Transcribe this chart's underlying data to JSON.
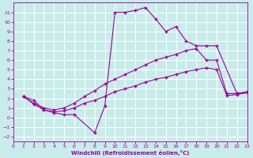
{
  "xlabel": "Windchill (Refroidissement éolien,°C)",
  "xlim": [
    0,
    23
  ],
  "ylim": [
    -2.5,
    12
  ],
  "xticks": [
    0,
    1,
    2,
    3,
    4,
    5,
    6,
    7,
    8,
    9,
    10,
    11,
    12,
    13,
    14,
    15,
    16,
    17,
    18,
    19,
    20,
    21,
    22,
    23
  ],
  "yticks": [
    -2,
    -1,
    0,
    1,
    2,
    3,
    4,
    5,
    6,
    7,
    8,
    9,
    10,
    11
  ],
  "background_color": "#c8ecea",
  "grid_color": "#b0dedd",
  "line_color": "#990099",
  "line1_x": [
    1,
    2,
    3,
    4,
    5,
    6,
    8,
    9,
    10,
    11,
    12,
    13,
    14,
    15,
    16,
    17,
    18,
    19,
    20,
    22,
    23
  ],
  "line1_y": [
    2.2,
    1.8,
    0.8,
    0.5,
    0.3,
    0.3,
    -1.6,
    1.2,
    11.0,
    11.0,
    11.2,
    11.5,
    10.3,
    9.0,
    9.5,
    8.0,
    7.5,
    7.5,
    7.5,
    2.5,
    2.6
  ],
  "line2_x": [
    1,
    2,
    3,
    4,
    5,
    6,
    7,
    8,
    9,
    10,
    11,
    12,
    13,
    14,
    15,
    16,
    17,
    18,
    19,
    20,
    21,
    22,
    23
  ],
  "line2_y": [
    2.2,
    1.5,
    1.0,
    0.8,
    1.0,
    1.5,
    2.2,
    2.8,
    3.5,
    4.0,
    4.5,
    5.0,
    5.5,
    6.0,
    6.3,
    6.6,
    7.0,
    7.2,
    6.0,
    6.0,
    2.5,
    2.5,
    2.7
  ],
  "line3_x": [
    1,
    2,
    3,
    4,
    5,
    6,
    7,
    8,
    9,
    10,
    11,
    12,
    13,
    14,
    15,
    16,
    17,
    18,
    19,
    20,
    21,
    22,
    23
  ],
  "line3_y": [
    2.2,
    1.4,
    0.8,
    0.6,
    0.7,
    1.0,
    1.5,
    1.8,
    2.2,
    2.7,
    3.0,
    3.3,
    3.7,
    4.0,
    4.2,
    4.5,
    4.8,
    5.0,
    5.2,
    5.0,
    2.3,
    2.4,
    2.6
  ]
}
